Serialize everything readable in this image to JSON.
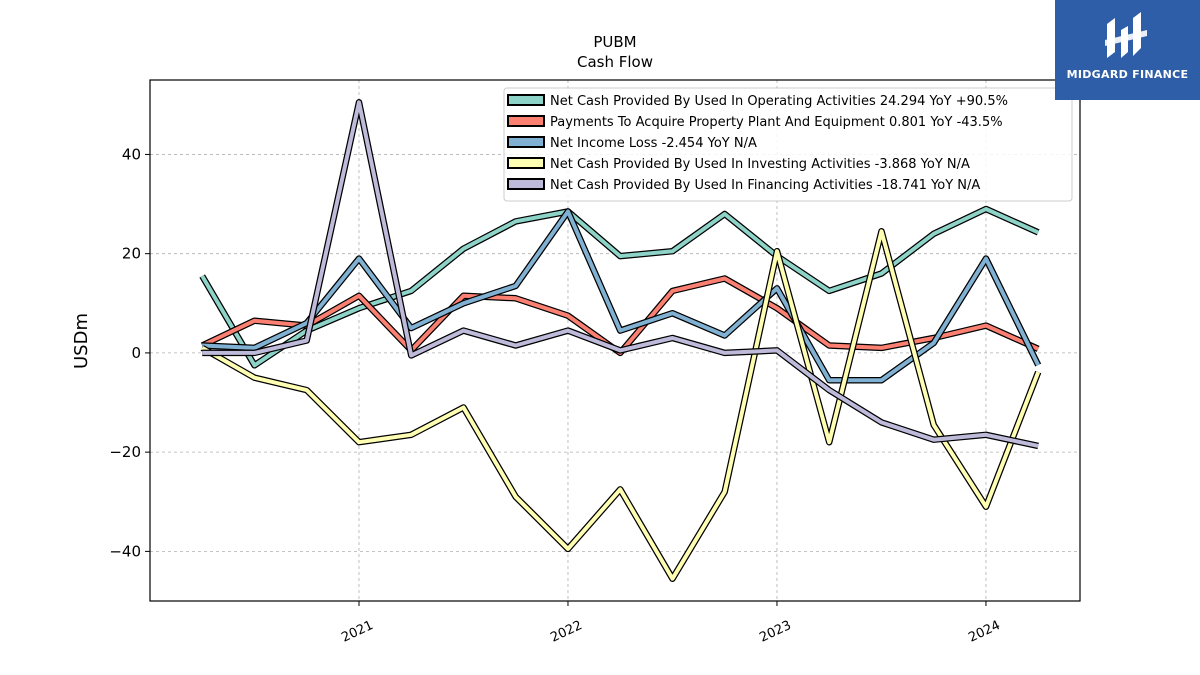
{
  "chart_data": {
    "type": "line",
    "title": "PUBM",
    "subtitle": "Cash Flow",
    "xlabel": "",
    "ylabel": "USDm",
    "xlim": [
      2020.0,
      2024.45
    ],
    "ylim": [
      -50,
      55
    ],
    "yticks": [
      -40,
      -20,
      0,
      20,
      40
    ],
    "xticks": [
      2021,
      2022,
      2023,
      2024
    ],
    "xtick_labels": [
      "2021",
      "2022",
      "2023",
      "2024"
    ],
    "grid": true,
    "legend_position": "top-right",
    "x": [
      2020.25,
      2020.5,
      2020.75,
      2021.0,
      2021.25,
      2021.5,
      2021.75,
      2022.0,
      2022.25,
      2022.5,
      2022.75,
      2023.0,
      2023.25,
      2023.5,
      2023.75,
      2024.0,
      2024.25
    ],
    "series": [
      {
        "name": "Net Cash Provided By Used In Operating Activities  24.294 YoY +90.5%",
        "color": "#8dd3c7",
        "values": [
          15.5,
          -2.5,
          4.5,
          9.0,
          12.5,
          21.0,
          26.5,
          28.5,
          19.5,
          20.5,
          28.0,
          19.5,
          12.5,
          16.0,
          24.0,
          29.0,
          24.294
        ]
      },
      {
        "name": "Payments To Acquire Property Plant And Equipment  0.801 YoY -43.5%",
        "color": "#fb8072",
        "values": [
          1.5,
          6.5,
          5.5,
          11.5,
          0.5,
          11.5,
          11.0,
          7.5,
          0.0,
          12.5,
          15.0,
          9.0,
          1.5,
          1.0,
          3.0,
          5.5,
          0.801
        ]
      },
      {
        "name": "Net Income Loss  -2.454 YoY N/A",
        "color": "#80b1d3",
        "values": [
          1.5,
          1.0,
          6.0,
          19.0,
          5.0,
          10.0,
          13.5,
          28.5,
          4.5,
          8.0,
          3.5,
          13.0,
          -5.5,
          -5.5,
          2.0,
          19.0,
          -2.454
        ]
      },
      {
        "name": "Net Cash Provided By Used In Investing Activities  -3.868 YoY N/A",
        "color": "#ffffb3",
        "values": [
          1.0,
          -5.0,
          -7.5,
          -18.0,
          -16.5,
          -11.0,
          -29.0,
          -39.5,
          -27.5,
          -45.5,
          -28.0,
          20.5,
          -18.0,
          24.5,
          -14.5,
          -31.0,
          -3.868
        ]
      },
      {
        "name": "Net Cash Provided By Used In Financing Activities  -18.741 YoY N/A",
        "color": "#bebada",
        "values": [
          0.0,
          0.0,
          2.5,
          50.5,
          -0.5,
          4.5,
          1.5,
          4.5,
          0.5,
          3.0,
          0.0,
          0.5,
          -7.5,
          -14.0,
          -17.5,
          -16.5,
          -18.741
        ]
      }
    ]
  },
  "logo": {
    "text": "MIDGARD FINANCE",
    "background": "#2f5ea8"
  }
}
